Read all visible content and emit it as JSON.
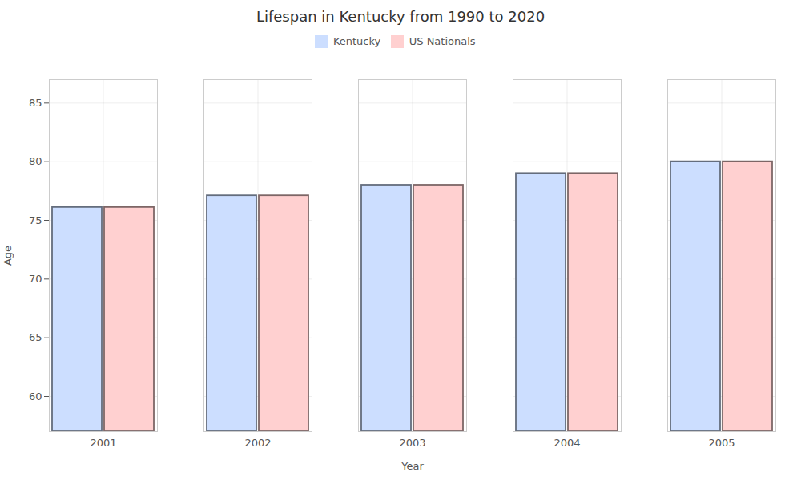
{
  "chart_data": {
    "type": "bar",
    "title": "Lifespan in Kentucky from 1990 to 2020",
    "xlabel": "Year",
    "ylabel": "Age",
    "categories": [
      "2001",
      "2002",
      "2003",
      "2004",
      "2005"
    ],
    "series": [
      {
        "name": "Kentucky",
        "color": "#ccdeff",
        "values": [
          76.1,
          77.1,
          78.0,
          79.0,
          80.0
        ]
      },
      {
        "name": "US Nationals",
        "color": "#ffd0d0",
        "values": [
          76.1,
          77.1,
          78.0,
          79.0,
          80.0
        ]
      }
    ],
    "ylim": [
      57,
      87
    ],
    "yticks": [
      60,
      65,
      70,
      75,
      80,
      85
    ],
    "grid": true,
    "legend": "top"
  }
}
